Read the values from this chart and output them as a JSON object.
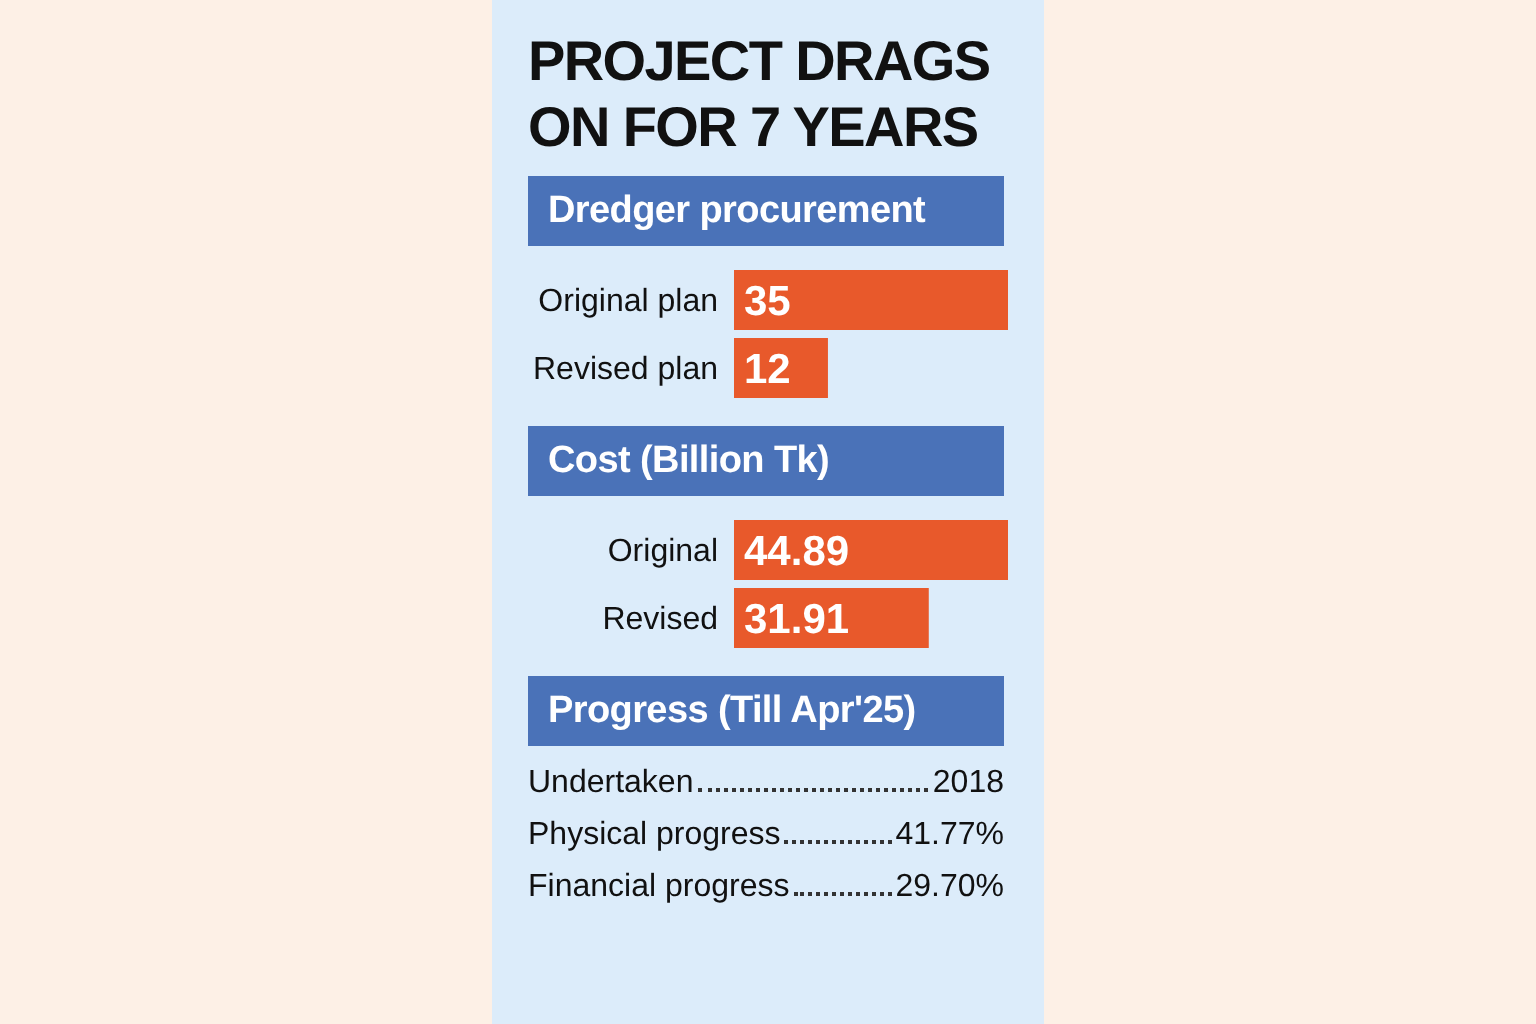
{
  "chart_data": [
    {
      "type": "bar",
      "orientation": "horizontal",
      "title": "PROJECT DRAGS ON FOR 7 YEARS",
      "subtitle": "Dredger procurement",
      "categories": [
        "Original plan",
        "Revised plan"
      ],
      "values": [
        35,
        12
      ],
      "color": "#e8592b",
      "data_labels": true,
      "legend": false,
      "grid": false
    },
    {
      "type": "bar",
      "orientation": "horizontal",
      "title": "Cost (Billion Tk)",
      "categories": [
        "Original",
        "Revised"
      ],
      "values": [
        44.89,
        31.91
      ],
      "color": "#e8592b",
      "data_labels": true,
      "legend": false,
      "grid": false
    },
    {
      "type": "other",
      "title": "Progress (Till Apr'25)",
      "annotations": [
        "Undertaken",
        "2018",
        "Physical progress",
        "41.77%",
        "Financial progress",
        "29.70%"
      ]
    }
  ]
}
